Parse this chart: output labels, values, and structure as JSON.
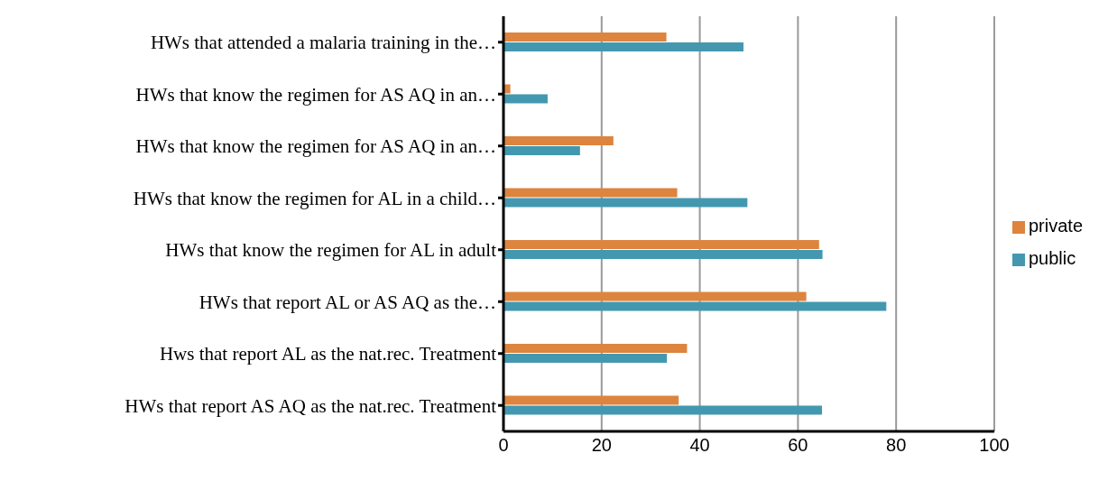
{
  "chart_data": {
    "type": "bar",
    "orientation": "horizontal",
    "categories": [
      "HWs that attended a malaria training in the…",
      "HWs that know the regimen for AS AQ in an…",
      "HWs that know the regimen for AS AQ in an…",
      "HWs that know the regimen for AL in a child…",
      "HWs that know the regimen for AL in adult",
      "HWs that report AL or AS AQ as the…",
      "Hws that report AL as the nat.rec. Treatment",
      "HWs that report AS AQ as the nat.rec. Treatment"
    ],
    "series": [
      {
        "name": "private",
        "color": "#dd843f",
        "values": [
          33.2,
          1.4,
          22.4,
          35.4,
          64.3,
          61.7,
          37.4,
          35.7
        ]
      },
      {
        "name": "public",
        "color": "#4398b0",
        "values": [
          48.9,
          9.0,
          15.6,
          49.7,
          65.0,
          78.0,
          33.3,
          64.9
        ]
      }
    ],
    "xlim": [
      0,
      100
    ],
    "xticks": [
      0,
      20,
      40,
      60,
      80,
      100
    ],
    "grid": "x",
    "legend": "right"
  }
}
